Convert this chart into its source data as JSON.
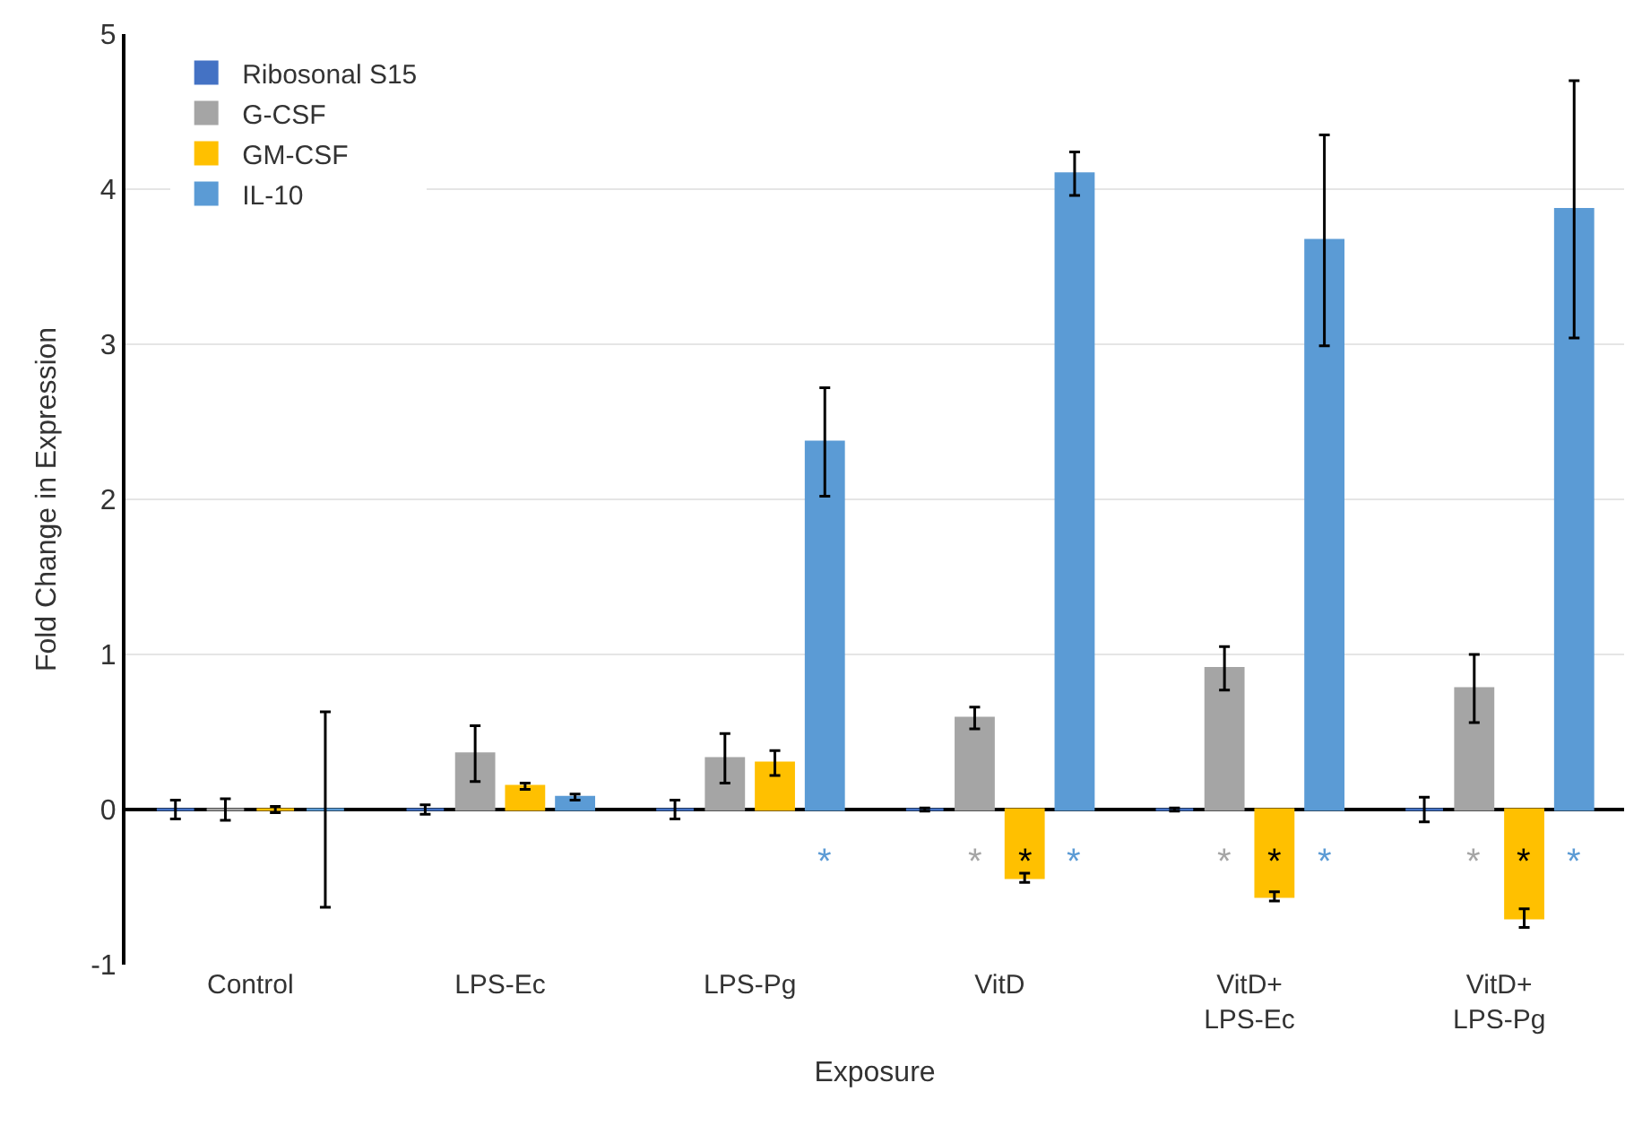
{
  "chart_data": {
    "type": "bar",
    "xlabel": "Exposure",
    "ylabel": "Fold Change in Expression",
    "categories": [
      "Control",
      "LPS-Ec",
      "LPS-Pg",
      "VitD",
      "VitD+\nLPS-Ec",
      "VitD+\nLPS-Pg"
    ],
    "series": [
      {
        "name": "Ribosonal S15",
        "color": "#4472c4",
        "values": [
          0,
          0,
          0,
          0,
          0,
          0
        ],
        "errors": [
          0.06,
          0.03,
          0.06,
          0.01,
          0.01,
          0.08
        ]
      },
      {
        "name": "G-CSF",
        "color": "#a5a5a5",
        "values": [
          0,
          0.36,
          0.33,
          0.59,
          0.91,
          0.78
        ],
        "errors": [
          0.07,
          0.18,
          0.16,
          0.07,
          0.14,
          0.22
        ]
      },
      {
        "name": "GM-CSF",
        "color": "#ffc000",
        "values": [
          0,
          0.15,
          0.3,
          -0.44,
          -0.56,
          -0.7
        ],
        "errors": [
          0.02,
          0.02,
          0.08,
          0.03,
          0.03,
          0.06
        ]
      },
      {
        "name": "IL-10",
        "color": "#5b9bd5",
        "values": [
          0,
          0.08,
          2.37,
          4.1,
          3.67,
          3.87
        ],
        "errors": [
          0.63,
          0.02,
          0.35,
          0.14,
          0.68,
          0.83
        ]
      }
    ],
    "annotations": [
      "*",
      "*",
      "*",
      "*",
      "*",
      "*",
      "*",
      "*",
      "*",
      "*"
    ],
    "ylim": [
      -1,
      5
    ],
    "yticks": [
      -1,
      0,
      1,
      2,
      3,
      4,
      5
    ],
    "grid": "y",
    "legend": "top left"
  }
}
